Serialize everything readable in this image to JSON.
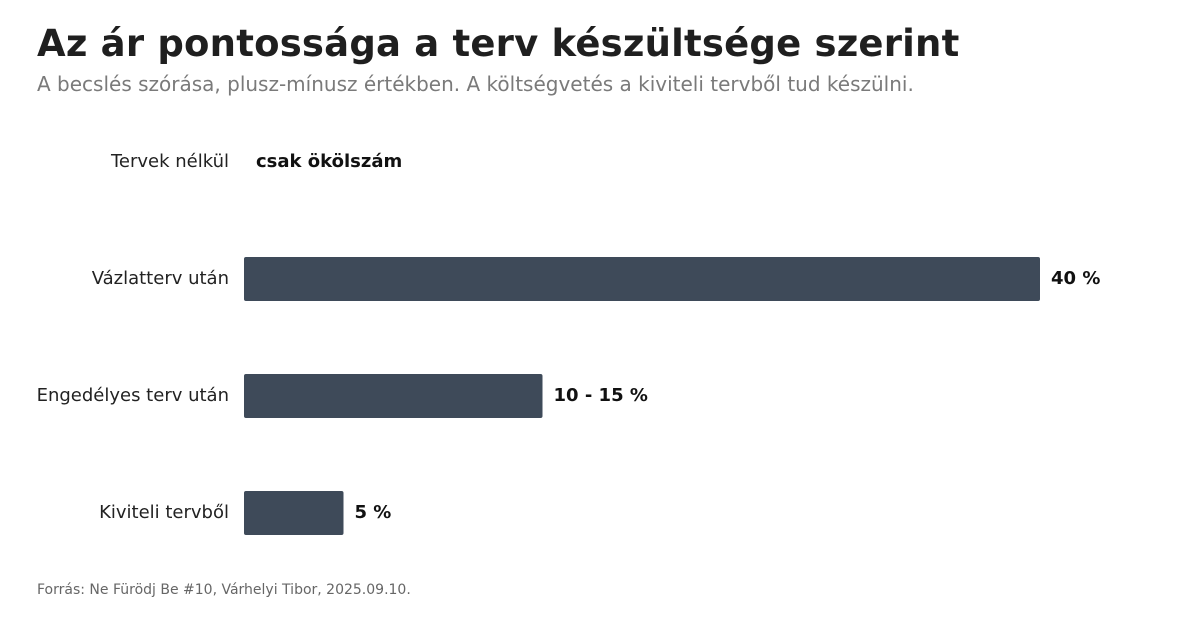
{
  "title": "Az ár pontossága a terv készültsége szerint",
  "subtitle": "A becslés szórása, plusz-mínusz értékben. A költségvetés a kiviteli tervből tud készülni.",
  "source": "Forrás: Ne Fürödj Be #10, Várhelyi Tibor, 2025.09.10.",
  "colors": {
    "bar": "#3e4a59"
  },
  "chart_data": {
    "type": "bar",
    "orientation": "horizontal",
    "categories": [
      "Tervek nélkül",
      "Vázlatterv után",
      "Engedélyes terv után",
      "Kiviteli tervből"
    ],
    "values": [
      null,
      40,
      15,
      5
    ],
    "value_labels": [
      "csak ökölszám",
      "40 %",
      "10 - 15 %",
      "5 %"
    ],
    "xlim": [
      0,
      40
    ],
    "grid": false
  }
}
